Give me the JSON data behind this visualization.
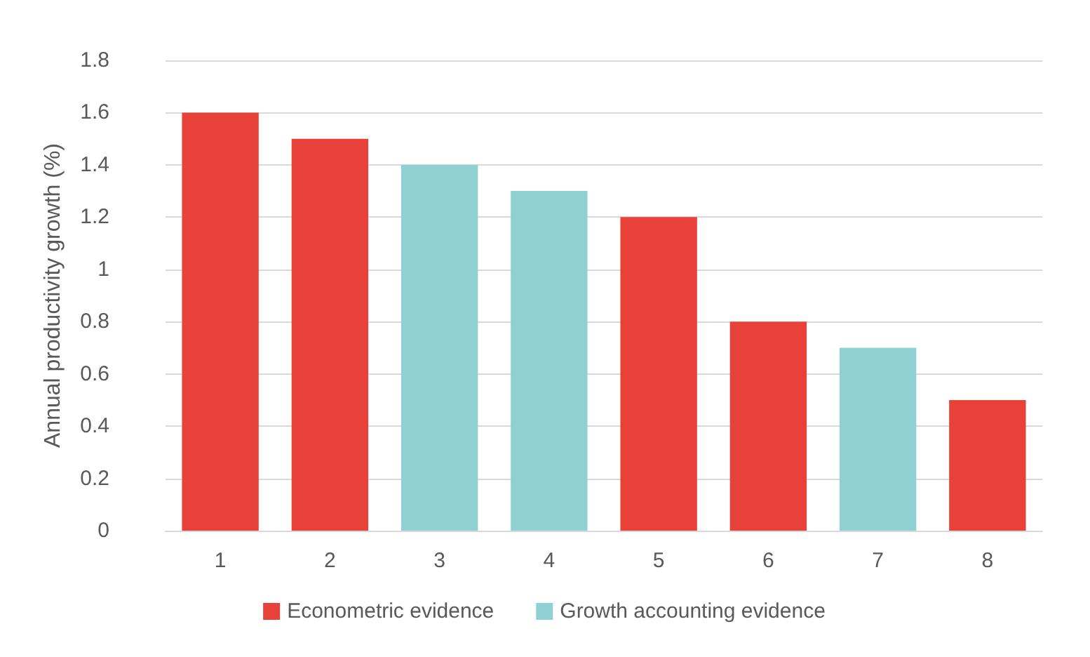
{
  "chart_data": {
    "type": "bar",
    "ylabel": "Annual productivity growth (%)",
    "categories": [
      "1",
      "2",
      "3",
      "4",
      "5",
      "6",
      "7",
      "8"
    ],
    "series": [
      {
        "name": "Econometric evidence",
        "color": "#e8413a",
        "values": [
          1.6,
          1.5,
          null,
          null,
          1.2,
          0.8,
          null,
          0.5
        ]
      },
      {
        "name": "Growth accounting evidence",
        "color": "#8fd1d3",
        "values": [
          null,
          null,
          1.4,
          1.3,
          null,
          null,
          0.7,
          null
        ]
      }
    ],
    "ylim": [
      0,
      1.8
    ],
    "yticks": [
      0,
      0.2,
      0.4,
      0.6,
      0.8,
      1,
      1.2,
      1.4,
      1.6,
      1.8
    ],
    "grid": "y",
    "legend": "bottom"
  }
}
